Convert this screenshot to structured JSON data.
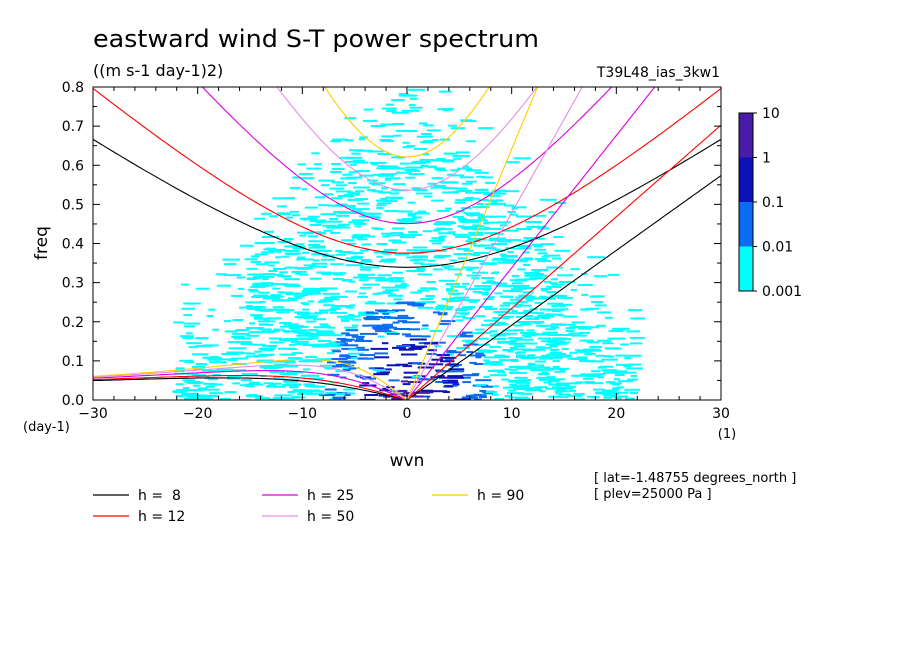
{
  "chart_data": {
    "type": "heatmap",
    "title": "eastward wind S-T power spectrum",
    "subtitle": "((m s-1 day-1)2)",
    "run_label": "T39L48_ias_3kw1",
    "xlabel": "wvn",
    "ylabel": "freq",
    "x_unit": "(1)",
    "y_unit": "(day-1)",
    "xlim": [
      -30,
      30
    ],
    "ylim": [
      0,
      0.8
    ],
    "xticks": [
      -30,
      -20,
      -10,
      0,
      10,
      20,
      30
    ],
    "yticks": [
      0.0,
      0.1,
      0.2,
      0.3,
      0.4,
      0.5,
      0.6,
      0.7,
      0.8
    ],
    "xtick_labels": [
      "-30",
      "-20",
      "-10",
      "0",
      "10",
      "20",
      "30"
    ],
    "ytick_labels": [
      "0.0",
      "0.1",
      "0.2",
      "0.3",
      "0.4",
      "0.5",
      "0.6",
      "0.7",
      "0.8"
    ],
    "colorbar": {
      "levels": [
        0.001,
        0.01,
        0.1,
        1,
        10
      ],
      "labels": [
        "0.001",
        "0.01",
        "0.1",
        "1",
        "10"
      ],
      "colors": [
        "#00ffff",
        "#0a6cf0",
        "#0a12b8",
        "#4a1aa8"
      ]
    },
    "equivalent_depths": [
      {
        "name": "h =  8",
        "h": 8,
        "color": "#000000"
      },
      {
        "name": "h = 12",
        "h": 12,
        "color": "#ff0000"
      },
      {
        "name": "h = 25",
        "h": 25,
        "color": "#dd00dd"
      },
      {
        "name": "h = 50",
        "h": 50,
        "color": "#e28fe6"
      },
      {
        "name": "h = 90",
        "h": 90,
        "color": "#ffcc00"
      }
    ],
    "annotations": [
      "[ lat=-1.48755 degrees_north ]",
      "[ plev=25000 Pa ]"
    ]
  }
}
